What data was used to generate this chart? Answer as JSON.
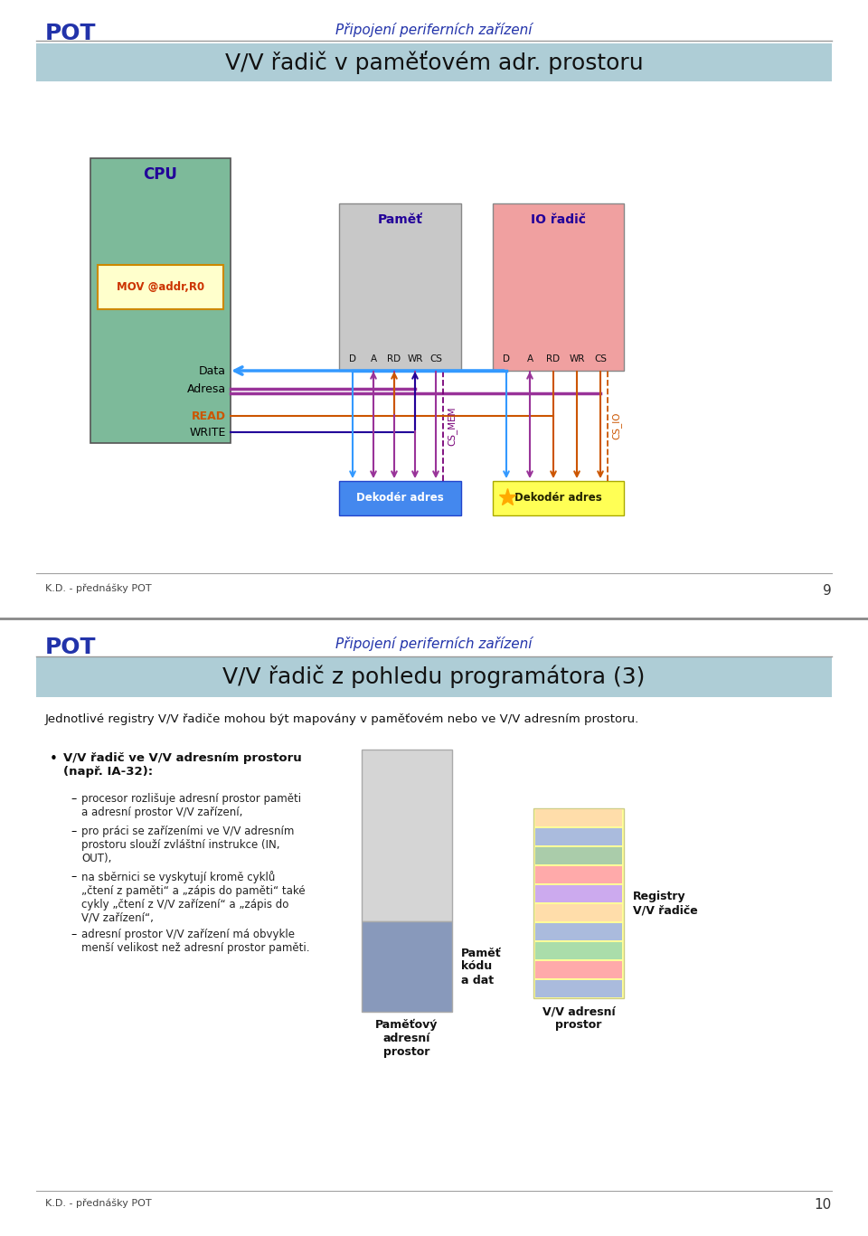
{
  "page1": {
    "title_left": "POT",
    "title_center": "Připojení periferních zařízení",
    "slide_title": "V/V řadič v paměťovém adr. prostoru",
    "footer": "K.D. - přednášky POT",
    "page_num": "9"
  },
  "page2": {
    "title_left": "POT",
    "title_center": "Připojení periferních zařízení",
    "slide_title": "V/V řadič z pohledu programátora (3)",
    "subtitle": "Jednotlivé registry V/V řadiče mohou být mapovány v paměťovém nebo ve V/V adresním prostoru.",
    "bullet_bold": "V/V řadič ve V/V adresním prostoru\n(např. IA-32):",
    "bullets": [
      "procesor rozlišuje adresní prostor paměti\na adresní prostor V/V zařízení,",
      "pro práci se zařízeními ve V/V adresním\nprostoru slouží zvláštní instrukce (IN,\nOUT),",
      "na sběrnici se vyskytují kromě cyklů\n„čtení z paměti“ a „zápis do paměti“ také\ncykly „čtení z V/V zařízení“ a „zápis do\nV/V zařízení“,",
      "adresní prostor V/V zařízení má obvykle\nmenší velikost než adresní prostor paměti."
    ],
    "footer": "K.D. - přednášky POT",
    "page_num": "10"
  },
  "colors": {
    "pot_blue": "#2233aa",
    "header_gray": "#999999",
    "slide_title_bg": "#aecdd6",
    "cpu_green": "#7dba9a",
    "mov_yellow": "#ffffcc",
    "mov_border": "#cc8800",
    "mov_text": "#cc3300",
    "pam_gray": "#c8c8c8",
    "io_pink": "#f0a0a0",
    "dek1_blue": "#4488ee",
    "dek2_yellow": "#ffff55",
    "data_blue": "#3399ff",
    "addr_purple": "#993399",
    "read_orange": "#cc5500",
    "write_navy": "#220099",
    "cs_mem_purple": "#770077",
    "cs_io_orange": "#cc5500",
    "dekoder_text_white": "#ffffff",
    "dekoder2_text": "#333300",
    "box_label_blue": "#220099",
    "stripe_colors": [
      "#aabbdd",
      "#ffaaaa",
      "#aaddaa",
      "#aabbdd",
      "#ffddaa",
      "#ccaaee",
      "#ffaaaa",
      "#aaccaa",
      "#aabbdd",
      "#ffddaa"
    ]
  }
}
